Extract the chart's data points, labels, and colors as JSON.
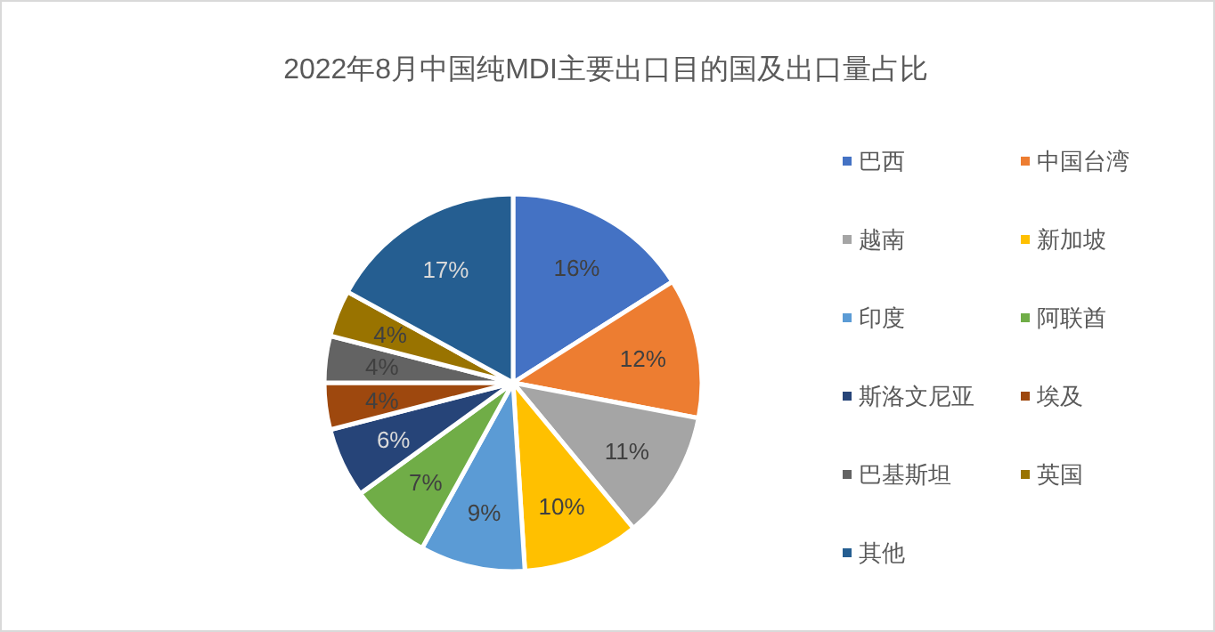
{
  "chart_data": {
    "type": "pie",
    "title": "2022年8月中国纯MDI主要出口目的国及出口量占比",
    "categories": [
      "巴西",
      "中国台湾",
      "越南",
      "新加坡",
      "印度",
      "阿联酋",
      "斯洛文尼亚",
      "埃及",
      "巴基斯坦",
      "英国",
      "其他"
    ],
    "values": [
      16,
      12,
      11,
      10,
      9,
      7,
      6,
      4,
      4,
      4,
      17
    ],
    "value_labels": [
      "16%",
      "12%",
      "11%",
      "10%",
      "9%",
      "7%",
      "6%",
      "4%",
      "4%",
      "4%",
      "17%"
    ],
    "colors": [
      "#4472c4",
      "#ed7d31",
      "#a5a5a5",
      "#ffc000",
      "#5b9bd5",
      "#70ad47",
      "#264478",
      "#9e480e",
      "#636363",
      "#997300",
      "#255e91"
    ],
    "legend": "right"
  }
}
